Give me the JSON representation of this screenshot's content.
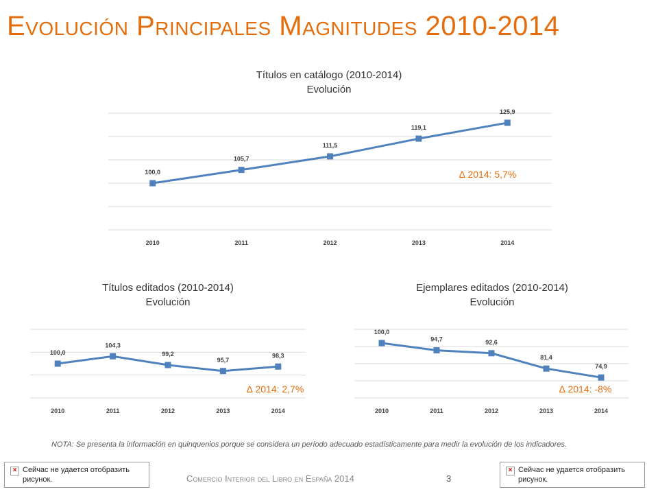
{
  "page": {
    "title": "Evolución Principales Magnitudes 2010-2014",
    "note": "NOTA: Se presenta la información en quinquenios porque se considera un período adecuado estadísticamente para medir la evolución de los indicadores.",
    "footer": "Comercio Interior del Libro en España 2014",
    "page_number": "3",
    "broken_image_text": "Сейчас не удается отобразить рисунок."
  },
  "colors": {
    "accent": "#E46C0A",
    "series": "#4F81BD",
    "grid": "#D9D9D9"
  },
  "chart_data": [
    {
      "type": "line",
      "title": "Títulos en catálogo (2010-2014)",
      "subtitle": "Evolución",
      "categories": [
        "2010",
        "2011",
        "2012",
        "2013",
        "2014"
      ],
      "values": [
        100.0,
        105.7,
        111.5,
        119.1,
        125.9
      ],
      "labels": [
        "100,0",
        "105,7",
        "111,5",
        "119,1",
        "125,9"
      ],
      "annotation": "∆ 2014: 5,7%",
      "ylim": [
        80,
        130
      ],
      "gridlines": 6,
      "legend": "none"
    },
    {
      "type": "line",
      "title": "Títulos editados (2010-2014)",
      "subtitle": "Evolución",
      "categories": [
        "2010",
        "2011",
        "2012",
        "2013",
        "2014"
      ],
      "values": [
        100.0,
        104.3,
        99.2,
        95.7,
        98.3
      ],
      "labels": [
        "100,0",
        "104,3",
        "99,2",
        "95,7",
        "98,3"
      ],
      "annotation": "∆ 2014: 2,7%",
      "ylim": [
        80,
        120
      ],
      "gridlines": 4,
      "legend": "none"
    },
    {
      "type": "line",
      "title": "Ejemplares editados (2010-2014)",
      "subtitle": "Evolución",
      "categories": [
        "2010",
        "2011",
        "2012",
        "2013",
        "2014"
      ],
      "values": [
        100.0,
        94.7,
        92.6,
        81.4,
        74.9
      ],
      "labels": [
        "100,0",
        "94,7",
        "92,6",
        "81,4",
        "74,9"
      ],
      "annotation": "∆ 2014: -8%",
      "ylim": [
        60,
        110
      ],
      "gridlines": 5,
      "legend": "none"
    }
  ]
}
